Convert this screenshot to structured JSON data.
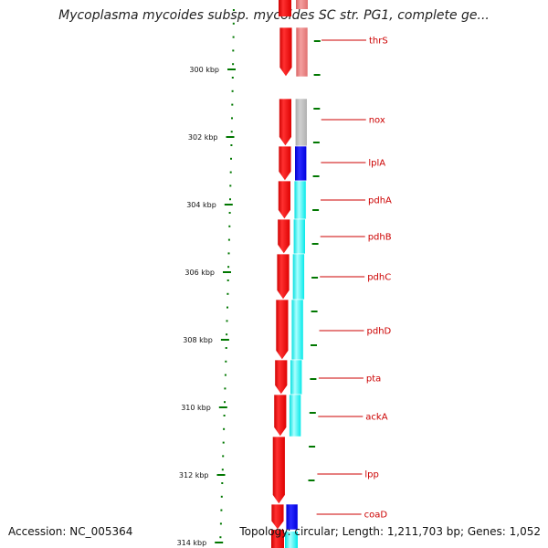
{
  "title": "Mycoplasma mycoides subsp. mycoides SC str. PG1, complete ge...",
  "accession_text": "Accession: NC_005364",
  "stats_text": "Topology: circular; Length: 1,211,703 bp; Genes: 1,052",
  "colors": {
    "forward": "#ff0000",
    "cog_salmon": "#f08080",
    "cog_gray": "#bdbdbd",
    "cog_blue": "#0000ff",
    "cog_cyan": "#00ffff",
    "label": "#cc0000",
    "tick": "#007700",
    "backbone": "#808080"
  },
  "map": {
    "scale_labels": [
      "300 kbp",
      "302 kbp",
      "304 kbp",
      "306 kbp",
      "308 kbp",
      "310 kbp",
      "312 kbp",
      "314 kbp"
    ],
    "genes": [
      {
        "name": "thrS",
        "cog": "salmon"
      },
      {
        "name": "nox",
        "cog": "gray"
      },
      {
        "name": "lplA",
        "cog": "blue"
      },
      {
        "name": "pdhA",
        "cog": "cyan"
      },
      {
        "name": "pdhB",
        "cog": "cyan"
      },
      {
        "name": "pdhC",
        "cog": "cyan"
      },
      {
        "name": "pdhD",
        "cog": "cyan"
      },
      {
        "name": "pta",
        "cog": "cyan"
      },
      {
        "name": "ackA",
        "cog": "cyan"
      },
      {
        "name": "lpp",
        "cog": "none"
      },
      {
        "name": "coaD",
        "cog": "blue"
      }
    ]
  }
}
